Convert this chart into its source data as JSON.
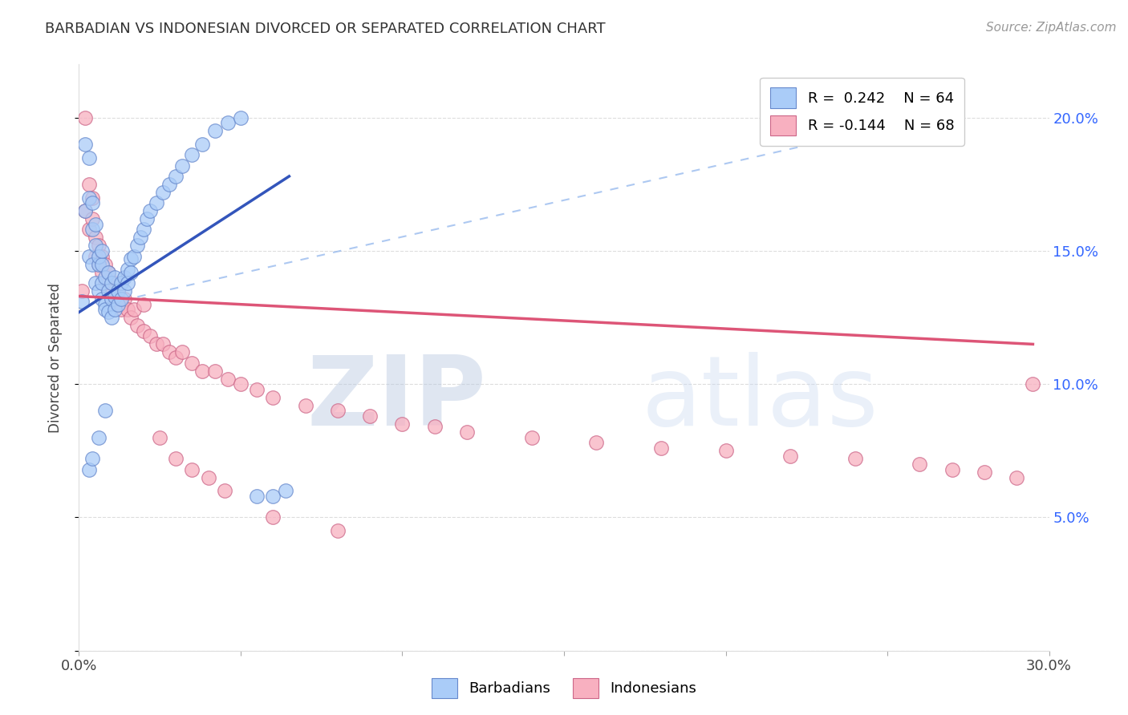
{
  "title": "BARBADIAN VS INDONESIAN DIVORCED OR SEPARATED CORRELATION CHART",
  "source": "Source: ZipAtlas.com",
  "ylabel": "Divorced or Separated",
  "xlim": [
    0.0,
    0.3
  ],
  "ylim": [
    0.0,
    0.22
  ],
  "barbadian_color": "#aaccf8",
  "indonesian_color": "#f8b0c0",
  "barbadian_edge": "#6688cc",
  "indonesian_edge": "#cc6688",
  "line_barbadian": "#3355bb",
  "line_indonesian": "#dd5577",
  "line_dashed_color": "#99bbee",
  "watermark_zip": "ZIP",
  "watermark_atlas": "atlas",
  "watermark_color": "#c8d8f0",
  "background_color": "#ffffff",
  "barb_x": [
    0.001,
    0.002,
    0.002,
    0.003,
    0.003,
    0.003,
    0.004,
    0.004,
    0.004,
    0.005,
    0.005,
    0.005,
    0.006,
    0.006,
    0.006,
    0.007,
    0.007,
    0.007,
    0.007,
    0.008,
    0.008,
    0.008,
    0.009,
    0.009,
    0.009,
    0.01,
    0.01,
    0.01,
    0.011,
    0.011,
    0.011,
    0.012,
    0.012,
    0.013,
    0.013,
    0.014,
    0.014,
    0.015,
    0.015,
    0.016,
    0.016,
    0.017,
    0.018,
    0.019,
    0.02,
    0.021,
    0.022,
    0.024,
    0.026,
    0.028,
    0.03,
    0.032,
    0.035,
    0.038,
    0.042,
    0.046,
    0.05,
    0.055,
    0.06,
    0.064,
    0.003,
    0.004,
    0.006,
    0.008
  ],
  "barb_y": [
    0.131,
    0.19,
    0.165,
    0.148,
    0.17,
    0.185,
    0.168,
    0.158,
    0.145,
    0.152,
    0.16,
    0.138,
    0.145,
    0.135,
    0.148,
    0.138,
    0.145,
    0.132,
    0.15,
    0.14,
    0.13,
    0.128,
    0.135,
    0.142,
    0.127,
    0.132,
    0.138,
    0.125,
    0.133,
    0.14,
    0.128,
    0.135,
    0.13,
    0.138,
    0.132,
    0.14,
    0.135,
    0.143,
    0.138,
    0.147,
    0.142,
    0.148,
    0.152,
    0.155,
    0.158,
    0.162,
    0.165,
    0.168,
    0.172,
    0.175,
    0.178,
    0.182,
    0.186,
    0.19,
    0.195,
    0.198,
    0.2,
    0.058,
    0.058,
    0.06,
    0.068,
    0.072,
    0.08,
    0.09
  ],
  "indo_x": [
    0.001,
    0.002,
    0.002,
    0.003,
    0.003,
    0.004,
    0.004,
    0.005,
    0.005,
    0.006,
    0.006,
    0.007,
    0.007,
    0.008,
    0.008,
    0.009,
    0.009,
    0.01,
    0.01,
    0.011,
    0.011,
    0.012,
    0.013,
    0.013,
    0.014,
    0.015,
    0.016,
    0.017,
    0.018,
    0.02,
    0.022,
    0.024,
    0.026,
    0.028,
    0.03,
    0.032,
    0.035,
    0.038,
    0.042,
    0.046,
    0.05,
    0.055,
    0.06,
    0.07,
    0.08,
    0.09,
    0.1,
    0.11,
    0.12,
    0.14,
    0.16,
    0.18,
    0.2,
    0.22,
    0.24,
    0.26,
    0.27,
    0.28,
    0.29,
    0.295,
    0.02,
    0.025,
    0.03,
    0.035,
    0.04,
    0.045,
    0.06,
    0.08
  ],
  "indo_y": [
    0.135,
    0.2,
    0.165,
    0.158,
    0.175,
    0.162,
    0.17,
    0.155,
    0.148,
    0.152,
    0.145,
    0.148,
    0.142,
    0.145,
    0.138,
    0.142,
    0.135,
    0.138,
    0.132,
    0.138,
    0.132,
    0.135,
    0.13,
    0.128,
    0.132,
    0.128,
    0.125,
    0.128,
    0.122,
    0.12,
    0.118,
    0.115,
    0.115,
    0.112,
    0.11,
    0.112,
    0.108,
    0.105,
    0.105,
    0.102,
    0.1,
    0.098,
    0.095,
    0.092,
    0.09,
    0.088,
    0.085,
    0.084,
    0.082,
    0.08,
    0.078,
    0.076,
    0.075,
    0.073,
    0.072,
    0.07,
    0.068,
    0.067,
    0.065,
    0.1,
    0.13,
    0.08,
    0.072,
    0.068,
    0.065,
    0.06,
    0.05,
    0.045
  ],
  "barb_line_x": [
    0.0,
    0.065
  ],
  "barb_line_y": [
    0.127,
    0.178
  ],
  "indo_line_x": [
    0.0,
    0.295
  ],
  "indo_line_y": [
    0.133,
    0.115
  ],
  "dash_line_x": [
    0.008,
    0.27
  ],
  "dash_line_y": [
    0.13,
    0.202
  ]
}
